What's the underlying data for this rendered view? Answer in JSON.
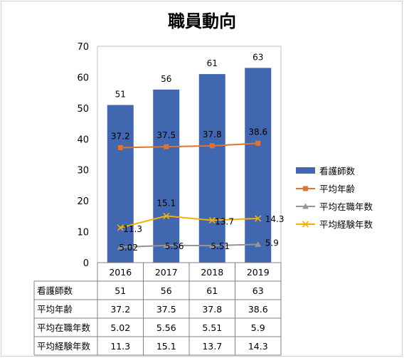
{
  "chart_data": {
    "type": "bar",
    "title": "職員動向",
    "categories": [
      "2016",
      "2017",
      "2018",
      "2019"
    ],
    "ylim": [
      0,
      70
    ],
    "yticks": [
      0,
      10,
      20,
      30,
      40,
      50,
      60,
      70
    ],
    "grid": false,
    "legend_position": "right",
    "series": [
      {
        "name": "看護師数",
        "kind": "bar",
        "color": "#4167b1",
        "marker": "none",
        "values": [
          51,
          56,
          61,
          63
        ],
        "labels": [
          "51",
          "56",
          "61",
          "63"
        ]
      },
      {
        "name": "平均年齢",
        "kind": "line",
        "color": "#e0742c",
        "marker": "square",
        "values": [
          37.2,
          37.5,
          37.8,
          38.6
        ],
        "labels": [
          "37.2",
          "37.5",
          "37.8",
          "38.6"
        ]
      },
      {
        "name": "平均在職年数",
        "kind": "line",
        "color": "#969696",
        "marker": "triangle",
        "values": [
          5.02,
          5.56,
          5.51,
          5.9
        ],
        "labels": [
          "5.02",
          "5.56",
          "5.51",
          "5.9"
        ]
      },
      {
        "name": "平均経験年数",
        "kind": "line",
        "color": "#f5b000",
        "marker": "x",
        "values": [
          11.3,
          15.1,
          13.7,
          14.3
        ],
        "labels": [
          "11.3",
          "15.1",
          "13.7",
          "14.3"
        ]
      }
    ]
  }
}
